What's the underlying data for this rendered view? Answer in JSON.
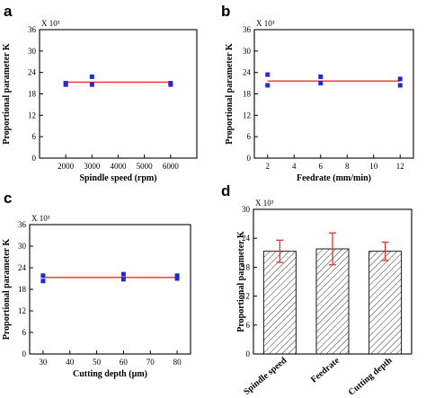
{
  "colors": {
    "marker": "#1f2bd6",
    "fit_line": "#e8312a",
    "error_bar": "#e8312a",
    "axis": "#000000"
  },
  "chart_data": [
    {
      "panel": "a",
      "type": "scatter",
      "xlabel": "Spindle speed (rpm)",
      "ylabel": "Proportional parameter K",
      "scale_note": "X 10³",
      "xlim": [
        1000,
        7000
      ],
      "ylim": [
        0,
        36
      ],
      "xticks": [
        2000,
        3000,
        4000,
        5000,
        6000
      ],
      "yticks": [
        0,
        6,
        12,
        18,
        24,
        30,
        36
      ],
      "points": [
        {
          "x": 2000,
          "y": 21.0
        },
        {
          "x": 2000,
          "y": 20.6
        },
        {
          "x": 3000,
          "y": 22.8
        },
        {
          "x": 3000,
          "y": 20.6
        },
        {
          "x": 6000,
          "y": 21.0
        },
        {
          "x": 6000,
          "y": 20.6
        }
      ],
      "fit_line": {
        "x": [
          2000,
          6000
        ],
        "y": [
          21.3,
          21.3
        ]
      }
    },
    {
      "panel": "b",
      "type": "scatter",
      "xlabel": "Feedrate (mm/min)",
      "ylabel": "Proportional parameter K",
      "scale_note": "X 10³",
      "xlim": [
        1,
        13
      ],
      "ylim": [
        0,
        36
      ],
      "xticks": [
        2,
        4,
        6,
        8,
        10,
        12
      ],
      "yticks": [
        0,
        6,
        12,
        18,
        24,
        30,
        36
      ],
      "points": [
        {
          "x": 2,
          "y": 23.4
        },
        {
          "x": 2,
          "y": 20.4
        },
        {
          "x": 6,
          "y": 22.8
        },
        {
          "x": 6,
          "y": 21.0
        },
        {
          "x": 12,
          "y": 22.2
        },
        {
          "x": 12,
          "y": 20.4
        }
      ],
      "fit_line": {
        "x": [
          2,
          12
        ],
        "y": [
          21.6,
          21.6
        ]
      }
    },
    {
      "panel": "c",
      "type": "scatter",
      "xlabel": "Cutting depth (µm)",
      "ylabel": "Proportional parameter K",
      "scale_note": "X 10³",
      "xlim": [
        25,
        85
      ],
      "ylim": [
        0,
        36
      ],
      "xticks": [
        30,
        40,
        50,
        60,
        70,
        80
      ],
      "yticks": [
        0,
        6,
        12,
        18,
        24,
        30,
        36
      ],
      "points": [
        {
          "x": 30,
          "y": 21.8
        },
        {
          "x": 30,
          "y": 20.3
        },
        {
          "x": 60,
          "y": 22.2
        },
        {
          "x": 60,
          "y": 20.8
        },
        {
          "x": 80,
          "y": 21.8
        },
        {
          "x": 80,
          "y": 21.0
        }
      ],
      "fit_line": {
        "x": [
          30,
          80
        ],
        "y": [
          21.3,
          21.3
        ]
      }
    },
    {
      "panel": "d",
      "type": "bar",
      "ylabel": "Proportional parameter K",
      "scale_note": "X 10³",
      "ylim": [
        0,
        30
      ],
      "yticks": [
        0,
        6,
        12,
        18,
        24,
        30
      ],
      "categories": [
        "Spindle speed",
        "Feedrate",
        "Cutting depth"
      ],
      "values": [
        21.3,
        21.8,
        21.3
      ],
      "errors": [
        2.3,
        3.3,
        1.9
      ]
    }
  ]
}
